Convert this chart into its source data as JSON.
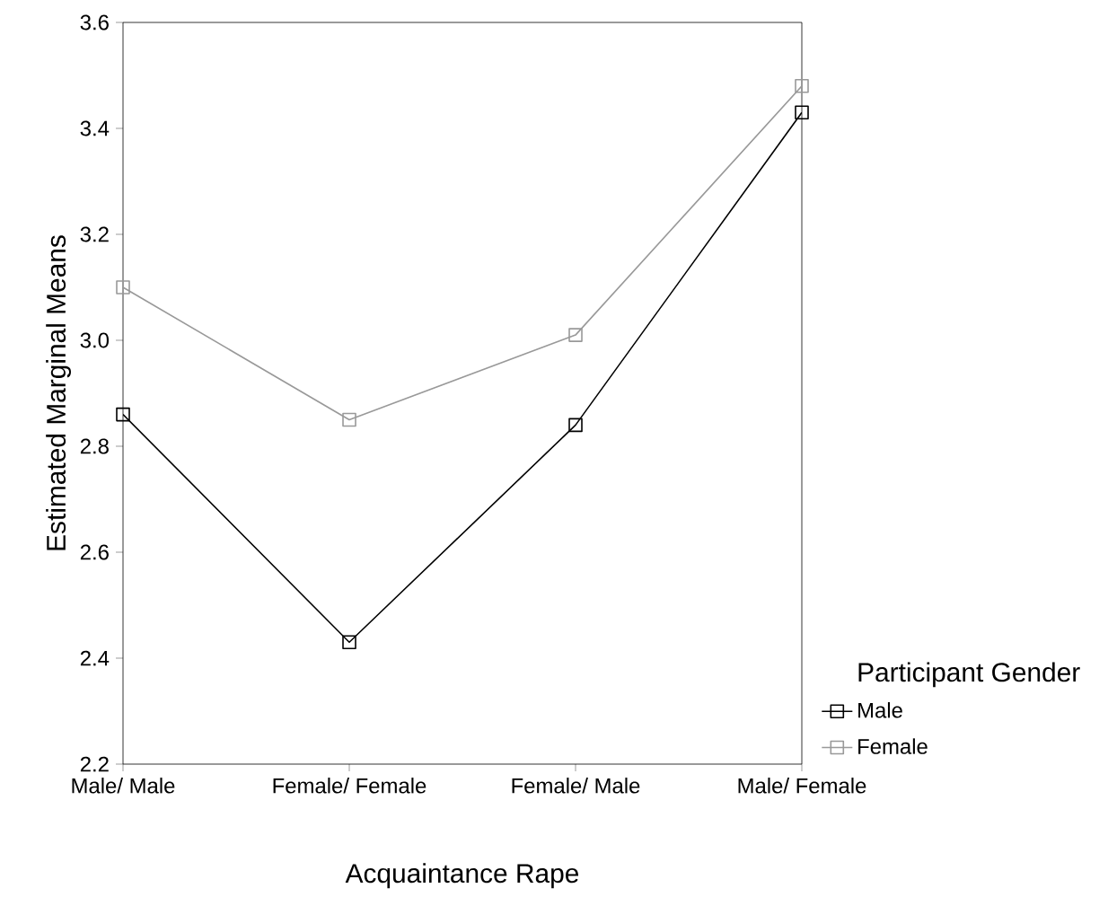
{
  "chart_data": {
    "type": "line",
    "xlabel": "Acquaintance Rape",
    "ylabel": "Estimated Marginal Means",
    "legend_title": "Participant Gender",
    "categories": [
      "Male/ Male",
      "Female/ Female",
      "Female/ Male",
      "Male/ Female"
    ],
    "series": [
      {
        "name": "Male",
        "color": "#000000",
        "values": [
          2.86,
          2.43,
          2.84,
          3.43
        ]
      },
      {
        "name": "Female",
        "color": "#999999",
        "values": [
          3.1,
          2.85,
          3.01,
          3.48
        ]
      }
    ],
    "ylim": [
      2.2,
      3.6
    ],
    "yticks": [
      {
        "value": 2.2,
        "label": "2.2"
      },
      {
        "value": 2.4,
        "label": "2.4"
      },
      {
        "value": 2.6,
        "label": "2.6"
      },
      {
        "value": 2.8,
        "label": "2.8"
      },
      {
        "value": 3.0,
        "label": "3.0"
      },
      {
        "value": 3.2,
        "label": "3.2"
      },
      {
        "value": 3.4,
        "label": "3.4"
      },
      {
        "value": 3.6,
        "label": "3.6"
      }
    ],
    "marker": "square",
    "line_style": "solid",
    "legend": "right",
    "grid": false
  }
}
